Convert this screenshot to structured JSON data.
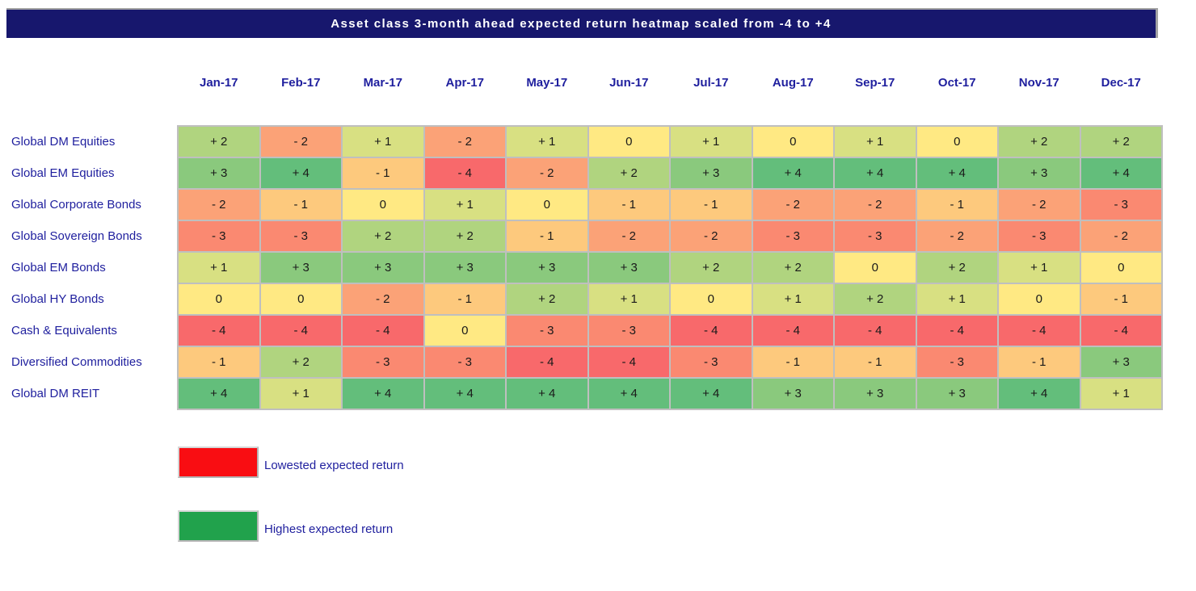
{
  "chart_data": {
    "type": "heatmap",
    "title": "Asset class 3-month ahead expected return heatmap scaled from -4 to +4",
    "columns": [
      "Jan-17",
      "Feb-17",
      "Mar-17",
      "Apr-17",
      "May-17",
      "Jun-17",
      "Jul-17",
      "Aug-17",
      "Sep-17",
      "Oct-17",
      "Nov-17",
      "Dec-17"
    ],
    "rows": [
      "Global DM Equities",
      "Global EM Equities",
      "Global Corporate Bonds",
      "Global Sovereign Bonds",
      "Global EM Bonds",
      "Global HY Bonds",
      "Cash & Equivalents",
      "Diversified Commodities",
      "Global DM REIT"
    ],
    "values": [
      [
        2,
        -2,
        1,
        -2,
        1,
        0,
        1,
        0,
        1,
        0,
        2,
        2
      ],
      [
        3,
        4,
        -1,
        -4,
        -2,
        2,
        3,
        4,
        4,
        4,
        3,
        4
      ],
      [
        -2,
        -1,
        0,
        1,
        0,
        -1,
        -1,
        -2,
        -2,
        -1,
        -2,
        -3
      ],
      [
        -3,
        -3,
        2,
        2,
        -1,
        -2,
        -2,
        -3,
        -3,
        -2,
        -3,
        -2
      ],
      [
        1,
        3,
        3,
        3,
        3,
        3,
        2,
        2,
        0,
        2,
        1,
        0
      ],
      [
        0,
        0,
        -2,
        -1,
        2,
        1,
        0,
        1,
        2,
        1,
        0,
        -1
      ],
      [
        -4,
        -4,
        -4,
        0,
        -3,
        -3,
        -4,
        -4,
        -4,
        -4,
        -4,
        -4
      ],
      [
        -1,
        2,
        -3,
        -3,
        -4,
        -4,
        -3,
        -1,
        -1,
        -3,
        -1,
        3
      ],
      [
        4,
        1,
        4,
        4,
        4,
        4,
        4,
        3,
        3,
        3,
        4,
        1
      ]
    ],
    "scale_min": -4,
    "scale_max": 4,
    "value_colors": {
      "-4": "#F8696B",
      "-3": "#FA8971",
      "-2": "#FBA277",
      "-1": "#FDC97D",
      "0": "#FFE983",
      "1": "#D8E082",
      "2": "#B0D47F",
      "3": "#8AC97D",
      "4": "#63BE7B"
    },
    "gridline_color": "#BFBFBF",
    "legend": [
      {
        "label": "Lowested expected return",
        "color": "#F90D12"
      },
      {
        "label": "Highest expected return",
        "color": "#21A24C"
      }
    ],
    "colors": {
      "title_bar_bg": "#17176D",
      "title_text": "#FFFFFF",
      "label_text": "#1F1F9E",
      "cell_text": "#1A1A1A"
    }
  }
}
